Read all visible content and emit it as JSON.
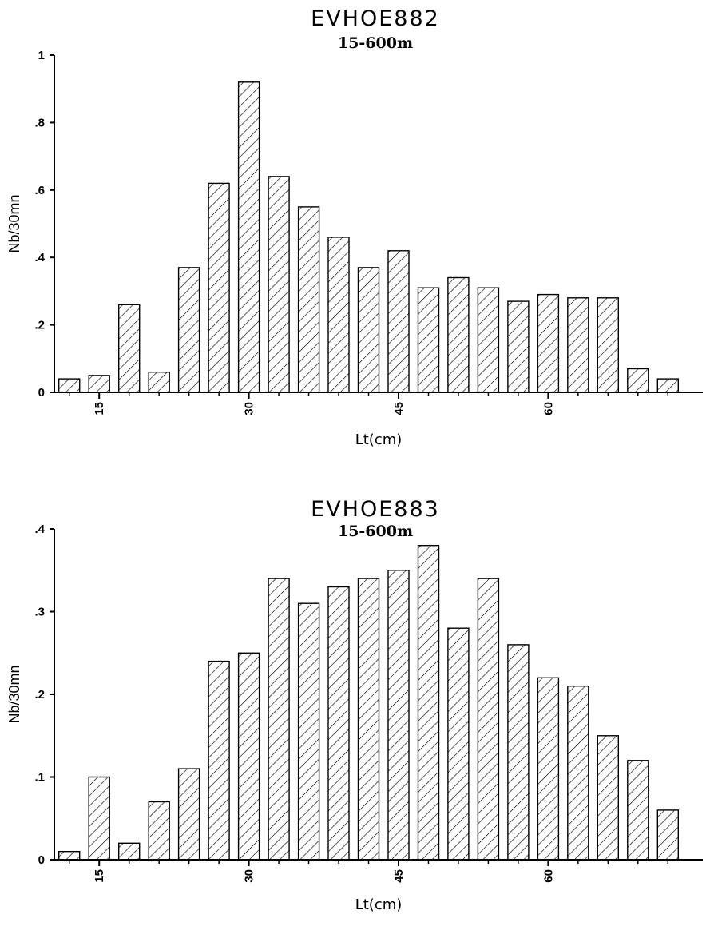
{
  "chart_data": [
    {
      "type": "bar",
      "title": "EVHOE882",
      "subtitle": "15-600m",
      "xlabel": "Lt(cm)",
      "ylabel": "Nb/30mn",
      "ylim": [
        0,
        1
      ],
      "yticks": [
        {
          "value": 0,
          "label": "0"
        },
        {
          "value": 0.2,
          "label": ".2"
        },
        {
          "value": 0.4,
          "label": ".4"
        },
        {
          "value": 0.6,
          "label": ".6"
        },
        {
          "value": 0.8,
          "label": ".8"
        },
        {
          "value": 1,
          "label": "1"
        }
      ],
      "xlim": [
        10.5,
        75.5
      ],
      "xticks": [
        {
          "value": 15,
          "label": "15"
        },
        {
          "value": 30,
          "label": "30"
        },
        {
          "value": 45,
          "label": "45"
        },
        {
          "value": 60,
          "label": "60"
        }
      ],
      "x": [
        12,
        15,
        18,
        21,
        24,
        27,
        30,
        33,
        36,
        39,
        42,
        45,
        48,
        51,
        54,
        57,
        60,
        63,
        66,
        69,
        72
      ],
      "values": [
        0.04,
        0.05,
        0.26,
        0.06,
        0.37,
        0.62,
        0.92,
        0.64,
        0.55,
        0.46,
        0.37,
        0.42,
        0.31,
        0.34,
        0.31,
        0.27,
        0.29,
        0.28,
        0.28,
        0.07,
        0.04
      ],
      "grid": false
    },
    {
      "type": "bar",
      "title": "EVHOE883",
      "subtitle": "15-600m",
      "xlabel": "Lt(cm)",
      "ylabel": "Nb/30mn",
      "ylim": [
        0,
        0.4
      ],
      "yticks": [
        {
          "value": 0,
          "label": "0"
        },
        {
          "value": 0.1,
          "label": ".1"
        },
        {
          "value": 0.2,
          "label": ".2"
        },
        {
          "value": 0.3,
          "label": ".3"
        },
        {
          "value": 0.4,
          "label": ".4"
        }
      ],
      "xlim": [
        10.5,
        75.5
      ],
      "xticks": [
        {
          "value": 15,
          "label": "15"
        },
        {
          "value": 30,
          "label": "30"
        },
        {
          "value": 45,
          "label": "45"
        },
        {
          "value": 60,
          "label": "60"
        }
      ],
      "x": [
        12,
        15,
        18,
        21,
        24,
        27,
        30,
        33,
        36,
        39,
        42,
        45,
        48,
        51,
        54,
        57,
        60,
        63,
        66,
        69,
        72
      ],
      "values": [
        0.01,
        0.1,
        0.02,
        0.07,
        0.11,
        0.24,
        0.25,
        0.34,
        0.31,
        0.33,
        0.34,
        0.35,
        0.38,
        0.28,
        0.34,
        0.26,
        0.22,
        0.21,
        0.15,
        0.12,
        0.06
      ],
      "grid": false
    }
  ]
}
